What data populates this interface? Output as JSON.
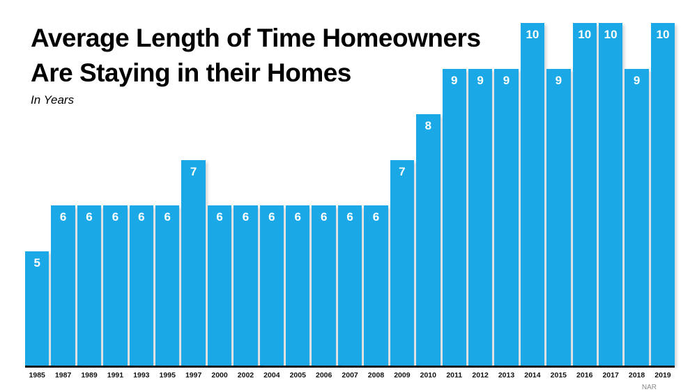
{
  "title": {
    "line1": "Average Length of Time Homeowners",
    "line2": "Are Staying in their Homes",
    "subtitle": "In Years"
  },
  "source": "NAR",
  "colors": {
    "bar": "#1BA8E6",
    "bar_label": "#ffffff",
    "axis": "#000000",
    "source_text": "#8a8a8a"
  },
  "chart_data": {
    "type": "bar",
    "title": "Average Length of Time Homeowners Are Staying in their Homes",
    "subtitle": "In Years",
    "categories": [
      "1985",
      "1987",
      "1989",
      "1991",
      "1993",
      "1995",
      "1997",
      "2000",
      "2002",
      "2004",
      "2005",
      "2006",
      "2007",
      "2008",
      "2009",
      "2010",
      "2011",
      "2012",
      "2013",
      "2014",
      "2015",
      "2016",
      "2017",
      "2018",
      "2019"
    ],
    "values": [
      5,
      6,
      6,
      6,
      6,
      6,
      7,
      6,
      6,
      6,
      6,
      6,
      6,
      6,
      7,
      8,
      9,
      9,
      9,
      10,
      9,
      10,
      10,
      9,
      10
    ],
    "xlabel": "",
    "ylabel": "",
    "ylim": [
      2.5,
      10
    ],
    "grid": false,
    "legend": "none",
    "data_labels": "inside-top",
    "source": "NAR"
  }
}
